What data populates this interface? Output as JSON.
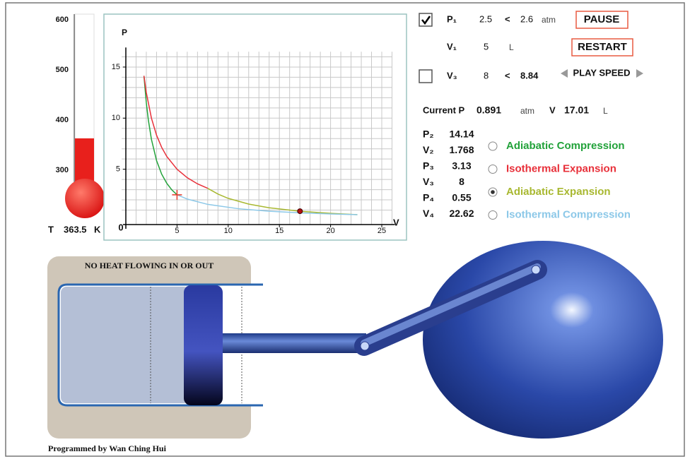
{
  "thermometer": {
    "ylim": [
      250,
      600
    ],
    "yticks": [
      300,
      400,
      500,
      600
    ],
    "label": "T",
    "value": 363.5,
    "unit": "K",
    "color": "#e8201c"
  },
  "pv_chart": {
    "type": "line",
    "y_label": "P",
    "x_label": "V",
    "origin_label": "0",
    "xlim": [
      0,
      26
    ],
    "ylim": [
      0,
      16.5
    ],
    "xticks": [
      5,
      10,
      15,
      20,
      25
    ],
    "yticks": [
      5,
      10,
      15
    ],
    "grid": true,
    "grid_step": 1,
    "active_series": 2,
    "series": [
      {
        "name": "Adiabatic Compression",
        "color": "#22a23a",
        "x": [
          5,
          4.5,
          4,
          3.5,
          3,
          2.5,
          2.2,
          2,
          1.768
        ],
        "values": [
          2.5,
          2.97,
          3.62,
          4.52,
          5.85,
          7.92,
          9.81,
          11.5,
          14.14
        ]
      },
      {
        "name": "Isothermal Expansion",
        "color": "#e8303a",
        "x": [
          1.768,
          2,
          2.5,
          3,
          3.5,
          4,
          5,
          6,
          7,
          8
        ],
        "values": [
          14.14,
          12.5,
          10,
          8.33,
          7.14,
          6.25,
          5,
          4.17,
          3.57,
          3.13
        ]
      },
      {
        "name": "Adiabatic Expansion",
        "color": "#a8b830",
        "x": [
          8,
          9,
          10,
          12,
          14,
          17.01,
          20,
          22.62
        ],
        "values": [
          3.13,
          2.57,
          2.15,
          1.59,
          1.23,
          0.891,
          0.68,
          0.55
        ]
      },
      {
        "name": "Isothermal Compression",
        "color": "#8cc8e8",
        "x": [
          22.62,
          20,
          17,
          14,
          11,
          8,
          6,
          5
        ],
        "values": [
          0.55,
          0.625,
          0.735,
          0.893,
          1.136,
          1.56,
          2.08,
          2.5
        ]
      }
    ],
    "start_marker": {
      "x": 5,
      "y": 2.5,
      "color": "#e53a2a"
    },
    "current_point": {
      "x": 17.01,
      "y": 0.891,
      "color": "#b01010"
    }
  },
  "controls": {
    "p1": {
      "label": "P₁",
      "value": 2.5,
      "compare": "<",
      "limit": 2.6,
      "unit": "atm",
      "checked": true
    },
    "pause": "PAUSE",
    "v1": {
      "label": "V₁",
      "value": 5,
      "unit": "L"
    },
    "restart": "RESTART",
    "v3": {
      "label": "V₃",
      "value": 8,
      "compare": "<",
      "limit": 8.84,
      "checked": false
    },
    "play_speed": "PLAY SPEED",
    "current": {
      "p_label": "Current P",
      "p": 0.891,
      "p_unit": "atm",
      "v_label": "V",
      "v": 17.01,
      "v_unit": "L"
    }
  },
  "results": [
    {
      "label": "P₂",
      "value": 14.14
    },
    {
      "label": "V₂",
      "value": 1.768
    },
    {
      "label": "P₃",
      "value": 3.13
    },
    {
      "label": "V₃",
      "value": 8
    },
    {
      "label": "P₄",
      "value": 0.55
    },
    {
      "label": "V₄",
      "value": 22.62
    }
  ],
  "piston": {
    "label": "NO HEAT FLOWING IN OR OUT"
  },
  "credit": "Programmed by Wan Ching Hui"
}
